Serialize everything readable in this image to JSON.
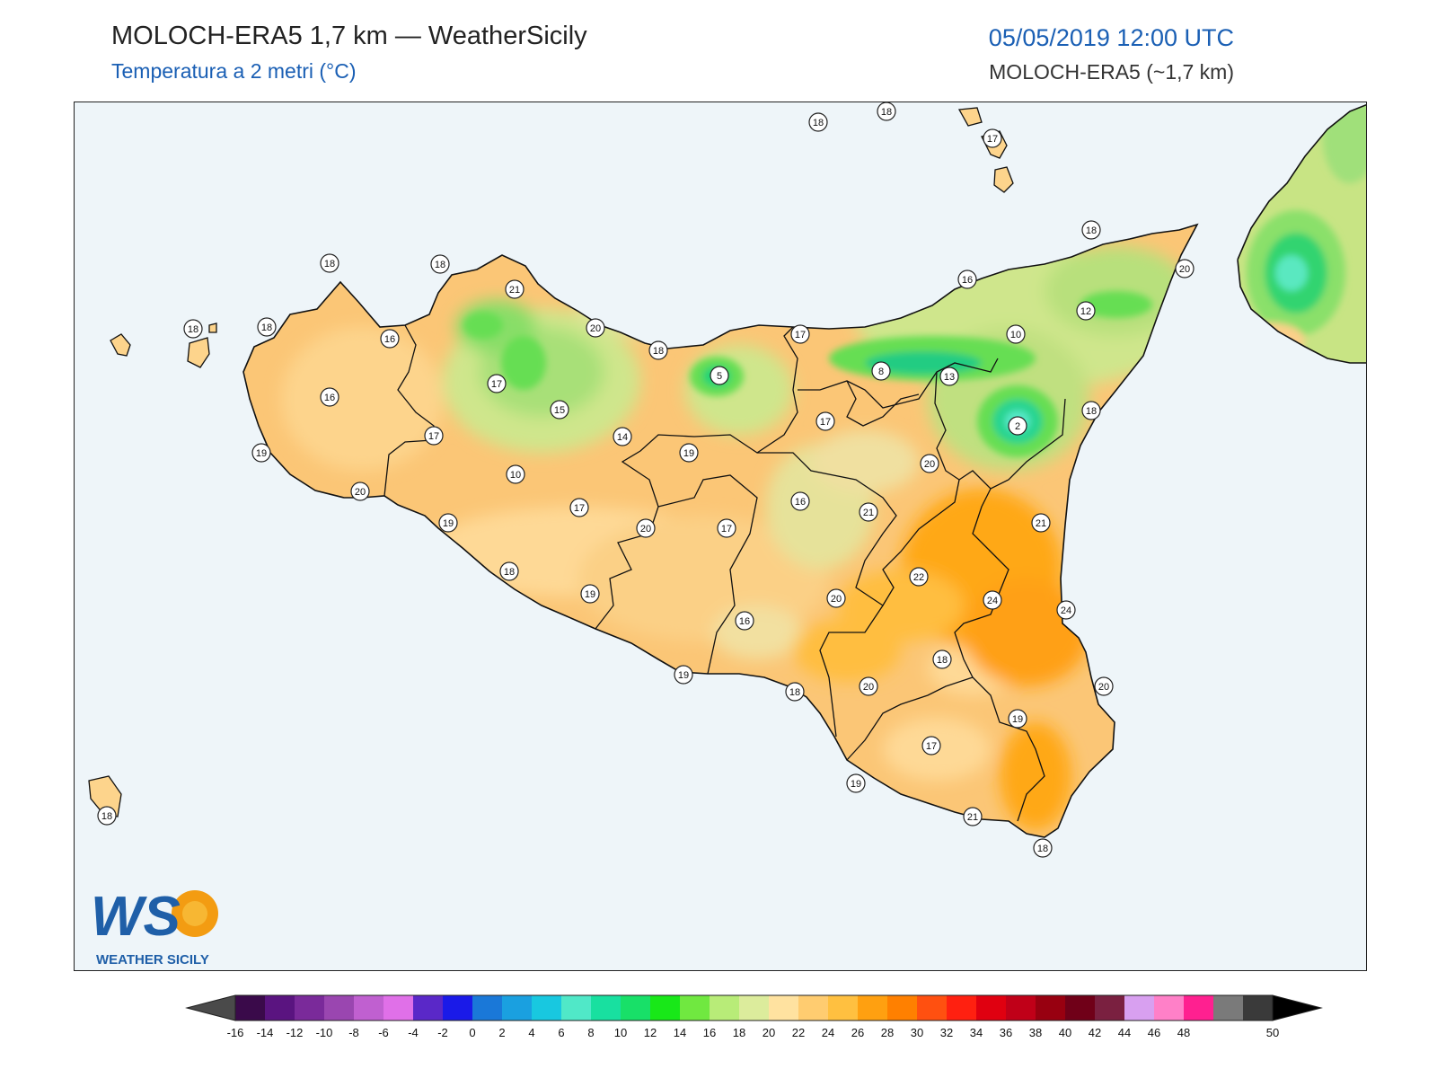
{
  "header": {
    "title": "MOLOCH-ERA5 1,7 km — WeatherSicily",
    "subtitle": "Temperatura a 2 metri (°C)",
    "datetime": "05/05/2019 12:00 UTC",
    "model": "MOLOCH-ERA5 (~1,7 km)"
  },
  "logo": {
    "letters": "WS",
    "text": "WEATHER SICILY"
  },
  "colors": {
    "sea": "#eef5f9",
    "accent": "#1a5fb4"
  },
  "station_labels": [
    {
      "v": "18"
    },
    {
      "v": "18"
    },
    {
      "v": "17"
    },
    {
      "v": "18"
    },
    {
      "v": "20"
    },
    {
      "v": "12"
    },
    {
      "v": "16"
    },
    {
      "v": "10"
    },
    {
      "v": "18"
    },
    {
      "v": "21"
    },
    {
      "v": "18"
    },
    {
      "v": "16"
    },
    {
      "v": "18"
    },
    {
      "v": "18"
    },
    {
      "v": "20"
    },
    {
      "v": "17"
    },
    {
      "v": "18"
    },
    {
      "v": "5"
    },
    {
      "v": "8"
    },
    {
      "v": "13"
    },
    {
      "v": "17"
    },
    {
      "v": "16"
    },
    {
      "v": "15"
    },
    {
      "v": "17"
    },
    {
      "v": "14"
    },
    {
      "v": "19"
    },
    {
      "v": "2"
    },
    {
      "v": "18"
    },
    {
      "v": "17"
    },
    {
      "v": "19"
    },
    {
      "v": "20"
    },
    {
      "v": "10"
    },
    {
      "v": "20"
    },
    {
      "v": "16"
    },
    {
      "v": "17"
    },
    {
      "v": "21"
    },
    {
      "v": "19"
    },
    {
      "v": "20"
    },
    {
      "v": "17"
    },
    {
      "v": "21"
    },
    {
      "v": "18"
    },
    {
      "v": "22"
    },
    {
      "v": "19"
    },
    {
      "v": "20"
    },
    {
      "v": "24"
    },
    {
      "v": "24"
    },
    {
      "v": "16"
    },
    {
      "v": "18"
    },
    {
      "v": "19"
    },
    {
      "v": "18"
    },
    {
      "v": "20"
    },
    {
      "v": "20"
    },
    {
      "v": "19"
    },
    {
      "v": "17"
    },
    {
      "v": "19"
    },
    {
      "v": "21"
    },
    {
      "v": "18"
    },
    {
      "v": "18"
    }
  ],
  "legend": {
    "ticks": [
      "-16",
      "-14",
      "-12",
      "-10",
      "-8",
      "-6",
      "-4",
      "-2",
      "0",
      "2",
      "4",
      "6",
      "8",
      "10",
      "12",
      "14",
      "16",
      "18",
      "20",
      "22",
      "24",
      "26",
      "28",
      "30",
      "32",
      "34",
      "36",
      "38",
      "40",
      "42",
      "44",
      "46",
      "48",
      "50"
    ],
    "colors": [
      "#3a0a4a",
      "#5a1480",
      "#7a2a9a",
      "#9a46b0",
      "#c060d0",
      "#e070e8",
      "#5a28c8",
      "#1a1ae8",
      "#1a78d8",
      "#1aa0e0",
      "#18c8e0",
      "#50e8c8",
      "#18e0a0",
      "#18e068",
      "#18e818",
      "#70e840",
      "#b8ec78",
      "#dcec9c",
      "#ffe2a0",
      "#ffcc70",
      "#ffc040",
      "#ffa010",
      "#ff8000",
      "#ff5010",
      "#ff2010",
      "#e00010",
      "#c00018",
      "#980010",
      "#700018",
      "#7a2040",
      "#d8a0f0",
      "#ff80c8",
      "#ff2090"
    ],
    "extra_colors": [
      "#7a7a7a",
      "#3a3a3a"
    ]
  }
}
